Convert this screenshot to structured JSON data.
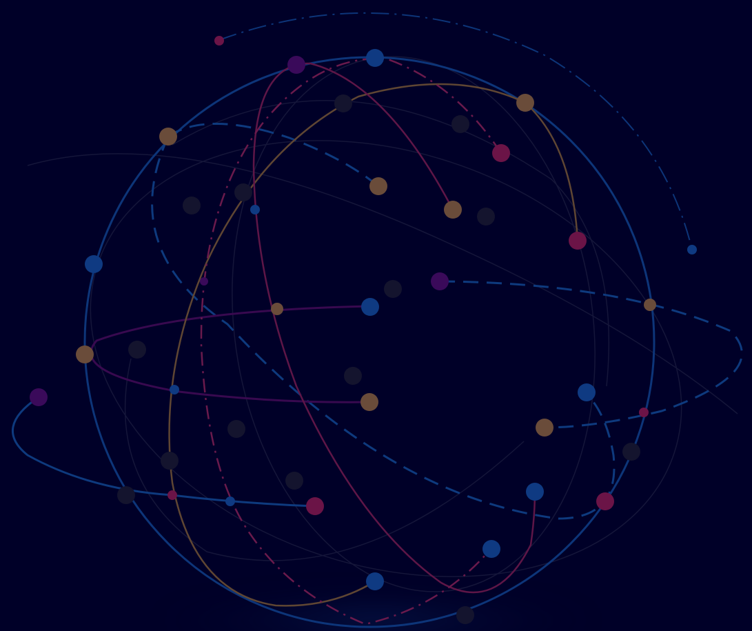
{
  "scene": {
    "background": "#000028",
    "colors": {
      "blue": "#0e3a7e",
      "blue_dot": "#123a86",
      "magenta": "#6a1a4c",
      "magenta_dot": "#6b1447",
      "purple": "#3b0a5c",
      "tan": "#6a4c3a",
      "faint": "#1a1a3c"
    },
    "icons": [
      "network-sphere-icon"
    ]
  }
}
